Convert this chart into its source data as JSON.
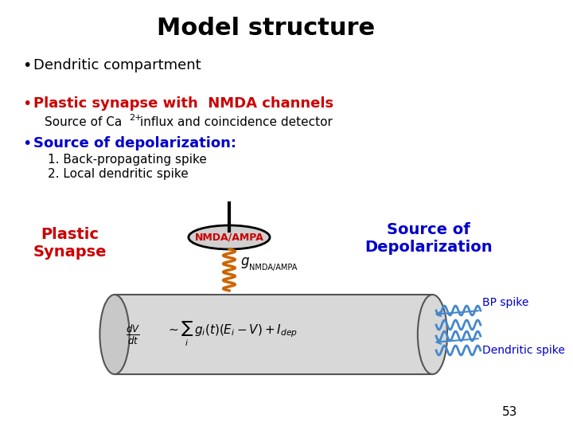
{
  "title": "Model structure",
  "title_fontsize": 22,
  "title_color": "#000000",
  "bg_color": "#ffffff",
  "bullet1": "Dendritic compartment",
  "bullet1_color": "#000000",
  "bullet2": "Plastic synapse with  NMDA channels",
  "bullet2_color": "#cc0000",
  "sub2": "Source of Ca",
  "sub2_sup": "2+",
  "sub2_rest": " influx and coincidence detector",
  "sub2_color": "#000000",
  "bullet3": "Source of depolarization:",
  "bullet3_color": "#0000cc",
  "sub3a": "1. Back-propagating spike",
  "sub3b": "2. Local dendritic spike",
  "sub3_color": "#000000",
  "label_plastic": "Plastic\nSynapse",
  "label_plastic_color": "#cc0000",
  "label_nmda": "NMDA/AMPA",
  "label_nmda_color": "#cc0000",
  "label_source": "Source of\nDepolarization",
  "label_source_color": "#0000cc",
  "label_g": "g",
  "label_g_sub": "NMDA/AMPA",
  "label_bp": "BP spike",
  "label_bp_color": "#0000cc",
  "label_ds": "Dendritic spike",
  "label_ds_color": "#0000cc",
  "page_number": "53"
}
